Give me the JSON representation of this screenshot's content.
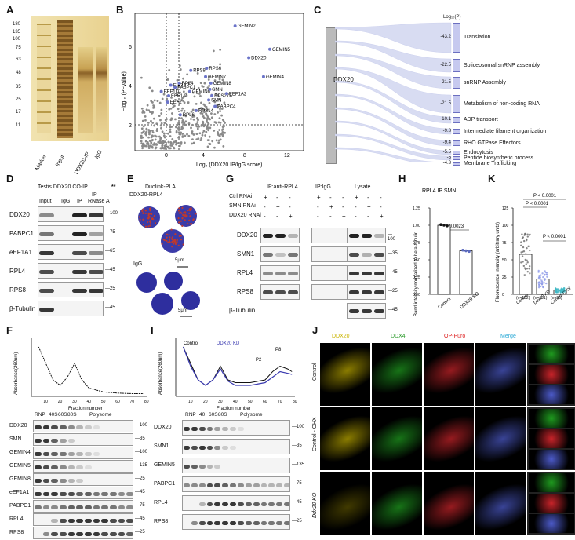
{
  "panels": {
    "A": "A",
    "B": "B",
    "C": "C",
    "D": "D",
    "E": "E",
    "F": "F",
    "G": "G",
    "H": "H",
    "I": "I",
    "J": "J",
    "K": "K"
  },
  "panelA": {
    "markers": [
      "180",
      "135",
      "100",
      "75",
      "63",
      "48",
      "35",
      "25",
      "17",
      "11"
    ],
    "lanes": [
      "Marker",
      "Input",
      "DDX20-IP",
      "IgG"
    ]
  },
  "panelB": {
    "xlabel": "Log₂ (DDX20 IP/IgG score)",
    "ylabel": "−log₁₀ (P−value)",
    "xticks": [
      "0",
      "4",
      "8",
      "12"
    ],
    "yticks": [
      "2",
      "4",
      "6"
    ],
    "labels": [
      "GEMIN2",
      "GEMIN5",
      "DDX20",
      "GEMIN4",
      "RPS8",
      "RPS6",
      "GEMIN7",
      "GEMIN8",
      "EIF3A",
      "RPL4",
      "PABPC1",
      "EEF1D",
      "EEF1A1",
      "EEF2",
      "GEMIN6",
      "SMN",
      "RPS27A",
      "EEF1A2",
      "SMN",
      "PABPC4",
      "RPS14",
      "RPL6"
    ]
  },
  "chart_data": [
    {
      "type": "bar",
      "title": "Log₁₀(P)",
      "categories": [
        "Translation",
        "Spliceosomal snRNP assembly",
        "snRNP Assembly",
        "Metabolism of non-coding RNA",
        "ADP transport",
        "Intermediate filament organization",
        "RHO GTPase Effectors",
        "Endocytosis",
        "Peptide biosynthetic process",
        "Membrane Trafficking"
      ],
      "values": [
        -43.2,
        -22.5,
        -21.5,
        -21.5,
        -10.1,
        -9.8,
        -9.4,
        -5.5,
        -5.0,
        -4.3
      ],
      "source": "DDX20"
    },
    {
      "type": "bar",
      "title": "RPL4 IP SMN",
      "ylabel": "Band intensity normalized to beta-tubulin",
      "categories": [
        "Control",
        "DDX20 KO"
      ],
      "values": [
        1.0,
        0.63
      ],
      "ylim": [
        0,
        1.25
      ],
      "yticks": [
        "0.00",
        "0.25",
        "0.50",
        "0.75",
        "1.00",
        "1.25"
      ],
      "annotation": "P = 0.0023"
    },
    {
      "type": "bar",
      "ylabel": "Fluorescence Intensity (arbitrary units)",
      "categories": [
        "Control",
        "Ddx20 KO",
        "Control-CHX"
      ],
      "values": [
        58,
        22,
        6
      ],
      "ylim": [
        0,
        125
      ],
      "yticks": [
        "0",
        "25",
        "50",
        "75",
        "100",
        "125"
      ],
      "n": [
        "(n=102)",
        "(n=101)",
        "(n=96)"
      ],
      "annotations": [
        "P < 0.0001",
        "P < 0.0001",
        "P < 0.0001"
      ]
    },
    {
      "type": "line",
      "ylabel": "Absorbance(260nm)",
      "xlabel": "Fraction number",
      "xticks": [
        "10",
        "20",
        "30",
        "40",
        "50",
        "60",
        "70",
        "80"
      ],
      "x": [
        5,
        10,
        15,
        20,
        25,
        30,
        35,
        40,
        50,
        60,
        70,
        78
      ],
      "values": [
        0.9,
        0.6,
        0.3,
        0.2,
        0.35,
        0.6,
        0.3,
        0.15,
        0.08,
        0.06,
        0.05,
        0.05
      ]
    },
    {
      "type": "line",
      "ylabel": "Absorbance(260nm)",
      "xlabel": "Fraction number",
      "xticks": [
        "10",
        "20",
        "30",
        "40",
        "50",
        "60",
        "70",
        "80"
      ],
      "series": [
        {
          "name": "Control",
          "x": [
            5,
            10,
            15,
            20,
            25,
            30,
            35,
            40,
            50,
            60,
            65,
            70,
            75,
            78
          ],
          "values": [
            0.9,
            0.6,
            0.3,
            0.2,
            0.3,
            0.55,
            0.3,
            0.25,
            0.25,
            0.3,
            0.45,
            0.55,
            0.5,
            0.45
          ]
        },
        {
          "name": "DDX20 KD",
          "x": [
            5,
            10,
            15,
            20,
            25,
            30,
            35,
            40,
            50,
            60,
            65,
            70,
            75,
            78
          ],
          "values": [
            0.9,
            0.55,
            0.3,
            0.2,
            0.3,
            0.5,
            0.28,
            0.2,
            0.2,
            0.25,
            0.35,
            0.45,
            0.42,
            0.4
          ]
        }
      ],
      "annotations": [
        "P2",
        "P8"
      ]
    }
  ],
  "panelD": {
    "header": "Testis DDX20  CO-IP",
    "stars": "**",
    "ip": "IP",
    "lanes": [
      "Input",
      "IgG",
      "IP",
      "RNase A"
    ],
    "rows": [
      {
        "name": "DDX20",
        "mw": "100"
      },
      {
        "name": "PABPC1",
        "mw": "75"
      },
      {
        "name": "eEF1A1",
        "mw": "65"
      },
      {
        "name": "RPL4",
        "mw": "45"
      },
      {
        "name": "RPS8",
        "mw": "25"
      },
      {
        "name": "β-Tubulin",
        "mw": "45"
      }
    ]
  },
  "panelE": {
    "title": "Duolink-PLA",
    "sub1": "DDX20-RPL4",
    "sub2": "IgG",
    "scale": "5μm"
  },
  "panelF": {
    "fractions": [
      "RNP",
      "40S",
      "60S",
      "80S",
      "Polysome"
    ],
    "rows": [
      {
        "name": "DDX20",
        "mw": "100"
      },
      {
        "name": "SMN",
        "mw": "35"
      },
      {
        "name": "GEMIN4",
        "mw": "100"
      },
      {
        "name": "GEMIN5",
        "mw": "135"
      },
      {
        "name": "GEMIN8",
        "mw": "25"
      },
      {
        "name": "eEF1A1",
        "mw": "45"
      },
      {
        "name": "PABPC1",
        "mw": "75"
      },
      {
        "name": "RPL4",
        "mw": "45"
      },
      {
        "name": "RPS8",
        "mw": "25"
      }
    ]
  },
  "panelG": {
    "groups": [
      "IP:anti-RPL4",
      "IP:IgG",
      "Lysate"
    ],
    "treat": [
      "Ctrl RNAi",
      "SMN RNAi",
      "DDX20 RNAi"
    ],
    "plus": "+",
    "minus": "-",
    "rows": [
      {
        "name": "DDX20",
        "mw": "100"
      },
      {
        "name": "SMN1",
        "mw": "35"
      },
      {
        "name": "RPL4",
        "mw": "45"
      },
      {
        "name": "RPS8",
        "mw": "25"
      },
      {
        "name": "β-Tubulin",
        "mw": "45"
      }
    ]
  },
  "panelI": {
    "fractions": [
      "RNP",
      "40",
      "60S",
      "80S",
      "Polysome"
    ],
    "rows": [
      {
        "name": "DDX20",
        "mw": "100"
      },
      {
        "name": "SMN1",
        "mw": "35"
      },
      {
        "name": "GEMIN5",
        "mw": "135"
      },
      {
        "name": "PABPC1",
        "mw": "75"
      },
      {
        "name": "RPL4",
        "mw": "45"
      },
      {
        "name": "RPS8",
        "mw": "25"
      }
    ],
    "mw_extra": [
      "75",
      "45",
      "35",
      "100",
      "25"
    ]
  },
  "panelJ": {
    "cols": [
      "DDX20",
      "DDX4",
      "OP-Puro",
      "Merge"
    ],
    "rows": [
      "Control",
      "Control - CHX",
      "Ddx20 KO"
    ]
  }
}
